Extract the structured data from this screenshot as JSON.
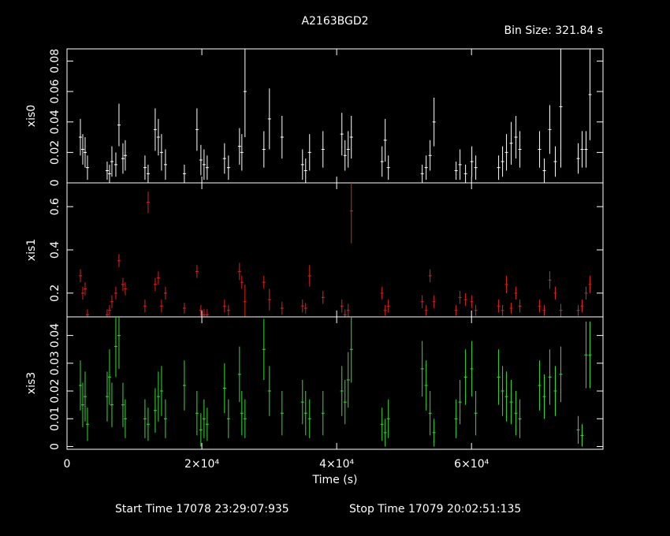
{
  "title": "A2163BGD2",
  "bin_size": "Bin Size: 321.84 s",
  "xlabel": "Time (s)",
  "start_time": "Start Time 17078 23:29:07:935",
  "stop_time": "Stop Time 17079 20:02:51:135",
  "chart_data": [
    {
      "type": "errorbar",
      "ylabel": "xis0",
      "color": "#ffffff",
      "x": [
        1986,
        2336,
        2687,
        3037,
        5958,
        6308,
        6659,
        7243,
        7710,
        8294,
        8645,
        11565,
        12033,
        13084,
        13551,
        14019,
        14603,
        17407,
        19276,
        19860,
        20327,
        20794,
        23364,
        23949,
        25584,
        25935,
        26402,
        29206,
        30023,
        31893,
        34930,
        35397,
        35981,
        37967,
        40771,
        41238,
        41706,
        42173,
        46729,
        47196,
        47664,
        52687,
        53271,
        53855,
        54439,
        57710,
        58294,
        59112,
        60047,
        60631,
        64019,
        64603,
        65187,
        65888,
        66589,
        67173,
        70093,
        70794,
        71612,
        72430,
        73248,
        75818,
        76402,
        76986,
        77570
      ],
      "values": [
        0.03,
        0.022,
        0.02,
        0.01,
        0.008,
        0.006,
        0.014,
        0.012,
        0.038,
        0.016,
        0.018,
        0.01,
        0.006,
        0.035,
        0.03,
        0.02,
        0.012,
        0.006,
        0.035,
        0.015,
        0.012,
        0.01,
        0.016,
        0.01,
        0.024,
        0.02,
        0.06,
        0.022,
        0.042,
        0.03,
        0.012,
        0.008,
        0.02,
        0.022,
        0.032,
        0.018,
        0.022,
        0.03,
        0.014,
        0.028,
        0.01,
        0.006,
        0.01,
        0.018,
        0.04,
        0.008,
        0.012,
        0.006,
        0.014,
        0.01,
        0.01,
        0.014,
        0.02,
        0.026,
        0.03,
        0.022,
        0.022,
        0.008,
        0.035,
        0.014,
        0.05,
        0.016,
        0.022,
        0.022,
        0.058
      ],
      "errors": [
        0.012,
        0.01,
        0.01,
        0.008,
        0.006,
        0.006,
        0.01,
        0.008,
        0.014,
        0.01,
        0.01,
        0.008,
        0.006,
        0.014,
        0.012,
        0.012,
        0.01,
        0.006,
        0.014,
        0.01,
        0.01,
        0.008,
        0.01,
        0.008,
        0.012,
        0.012,
        0.03,
        0.012,
        0.02,
        0.014,
        0.01,
        0.008,
        0.012,
        0.012,
        0.014,
        0.01,
        0.012,
        0.014,
        0.01,
        0.014,
        0.008,
        0.006,
        0.008,
        0.01,
        0.016,
        0.006,
        0.01,
        0.006,
        0.01,
        0.008,
        0.008,
        0.01,
        0.012,
        0.014,
        0.014,
        0.012,
        0.012,
        0.008,
        0.016,
        0.01,
        0.04,
        0.01,
        0.012,
        0.012,
        0.03
      ],
      "xlim": [
        0,
        79500
      ],
      "xticks": [
        0,
        {
          "value": 20000,
          "label": "2×10⁴"
        },
        {
          "value": 40000,
          "label": "4×10⁴"
        },
        {
          "value": 60000,
          "label": "6×10⁴"
        }
      ],
      "ylim": [
        0,
        0.088
      ],
      "yticks": [
        0,
        0.02,
        0.04,
        0.06,
        0.08
      ]
    },
    {
      "type": "errorbar",
      "ylabel": "xis1",
      "color": "#e02020",
      "x": [
        1986,
        2336,
        2687,
        3037,
        5958,
        6308,
        6659,
        7243,
        7710,
        8294,
        8645,
        11565,
        12033,
        13084,
        13551,
        14019,
        14603,
        17407,
        19276,
        19860,
        20327,
        20794,
        23364,
        23949,
        25584,
        25935,
        26402,
        29206,
        30023,
        31893,
        34930,
        35397,
        35981,
        37967,
        40771,
        41238,
        41706,
        42173,
        46729,
        47196,
        47664,
        52687,
        53271,
        53855,
        54439,
        57710,
        58294,
        59112,
        60047,
        60631,
        64019,
        64603,
        65187,
        65888,
        66589,
        67173,
        70093,
        70794,
        71612,
        72430,
        73248,
        75818,
        76402,
        76986,
        77570
      ],
      "values": [
        0.28,
        0.2,
        0.22,
        0.1,
        0.1,
        0.12,
        0.16,
        0.2,
        0.35,
        0.24,
        0.22,
        0.14,
        0.62,
        0.24,
        0.27,
        0.14,
        0.2,
        0.13,
        0.3,
        0.12,
        0.1,
        0.1,
        0.14,
        0.12,
        0.3,
        0.25,
        0.16,
        0.25,
        0.17,
        0.13,
        0.14,
        0.13,
        0.28,
        0.18,
        0.14,
        0.1,
        0.12,
        0.58,
        0.2,
        0.12,
        0.14,
        0.16,
        0.12,
        0.28,
        0.16,
        0.12,
        0.18,
        0.17,
        0.16,
        0.12,
        0.14,
        0.12,
        0.24,
        0.13,
        0.2,
        0.14,
        0.14,
        0.12,
        0.26,
        0.2,
        0.12,
        0.12,
        0.14,
        0.2,
        0.24
      ],
      "errors": [
        0.03,
        0.03,
        0.03,
        0.025,
        0.025,
        0.025,
        0.03,
        0.03,
        0.03,
        0.03,
        0.03,
        0.03,
        0.05,
        0.03,
        0.03,
        0.03,
        0.03,
        0.025,
        0.03,
        0.025,
        0.025,
        0.025,
        0.03,
        0.025,
        0.04,
        0.03,
        0.08,
        0.03,
        0.05,
        0.03,
        0.03,
        0.025,
        0.05,
        0.03,
        0.03,
        0.025,
        0.03,
        0.15,
        0.03,
        0.025,
        0.03,
        0.03,
        0.025,
        0.03,
        0.03,
        0.025,
        0.03,
        0.03,
        0.03,
        0.025,
        0.03,
        0.025,
        0.04,
        0.025,
        0.03,
        0.03,
        0.03,
        0.025,
        0.04,
        0.03,
        0.03,
        0.025,
        0.03,
        0.03,
        0.04
      ],
      "xlim": [
        0,
        79500
      ],
      "xticks": [
        0,
        {
          "value": 20000,
          "label": "2×10⁴"
        },
        {
          "value": 40000,
          "label": "4×10⁴"
        },
        {
          "value": 60000,
          "label": "6×10⁴"
        }
      ],
      "ylim": [
        0.09,
        0.71
      ],
      "yticks": [
        0.2,
        0.4,
        0.6
      ]
    },
    {
      "type": "errorbar",
      "ylabel": "xis3",
      "color": "#33dd33",
      "x": [
        1986,
        2336,
        2687,
        3037,
        5958,
        6308,
        6659,
        7243,
        7710,
        8294,
        8645,
        11565,
        12033,
        13084,
        13551,
        14019,
        14603,
        17407,
        19276,
        19860,
        20327,
        20794,
        23364,
        23949,
        25584,
        25935,
        26402,
        29206,
        30023,
        31893,
        34930,
        35397,
        35981,
        37967,
        40771,
        41238,
        41706,
        42173,
        46729,
        47196,
        47664,
        52687,
        53271,
        53855,
        54439,
        57710,
        58294,
        59112,
        60047,
        60631,
        64019,
        64603,
        65187,
        65888,
        66589,
        67173,
        70093,
        70794,
        71612,
        72430,
        73248,
        75818,
        76402,
        76986,
        77570
      ],
      "values": [
        0.022,
        0.015,
        0.018,
        0.008,
        0.018,
        0.025,
        0.015,
        0.036,
        0.04,
        0.015,
        0.01,
        0.01,
        0.008,
        0.013,
        0.018,
        0.02,
        0.01,
        0.022,
        0.012,
        0.006,
        0.01,
        0.008,
        0.021,
        0.01,
        0.026,
        0.012,
        0.01,
        0.035,
        0.02,
        0.012,
        0.016,
        0.012,
        0.01,
        0.012,
        0.02,
        0.016,
        0.024,
        0.035,
        0.008,
        0.005,
        0.01,
        0.028,
        0.022,
        0.012,
        0.005,
        0.01,
        0.016,
        0.025,
        0.028,
        0.012,
        0.025,
        0.02,
        0.018,
        0.016,
        0.012,
        0.01,
        0.022,
        0.018,
        0.025,
        0.02,
        0.026,
        0.006,
        0.004,
        0.033,
        0.033
      ],
      "errors": [
        0.009,
        0.008,
        0.009,
        0.006,
        0.009,
        0.01,
        0.008,
        0.011,
        0.012,
        0.008,
        0.007,
        0.007,
        0.006,
        0.008,
        0.009,
        0.009,
        0.007,
        0.009,
        0.008,
        0.006,
        0.007,
        0.006,
        0.009,
        0.007,
        0.01,
        0.008,
        0.007,
        0.011,
        0.009,
        0.008,
        0.008,
        0.008,
        0.007,
        0.008,
        0.009,
        0.008,
        0.01,
        0.012,
        0.006,
        0.005,
        0.007,
        0.01,
        0.009,
        0.008,
        0.005,
        0.007,
        0.008,
        0.01,
        0.01,
        0.008,
        0.01,
        0.009,
        0.009,
        0.008,
        0.008,
        0.007,
        0.009,
        0.008,
        0.01,
        0.009,
        0.01,
        0.005,
        0.004,
        0.012,
        0.012
      ],
      "xlim": [
        0,
        79500
      ],
      "xticks": [
        0,
        {
          "value": 20000,
          "label": "2×10⁴"
        },
        {
          "value": 40000,
          "label": "4×10⁴"
        },
        {
          "value": 60000,
          "label": "6×10⁴"
        }
      ],
      "ylim": [
        -0.001,
        0.0467
      ],
      "yticks": [
        0,
        0.01,
        0.02,
        0.03,
        0.04
      ]
    }
  ]
}
